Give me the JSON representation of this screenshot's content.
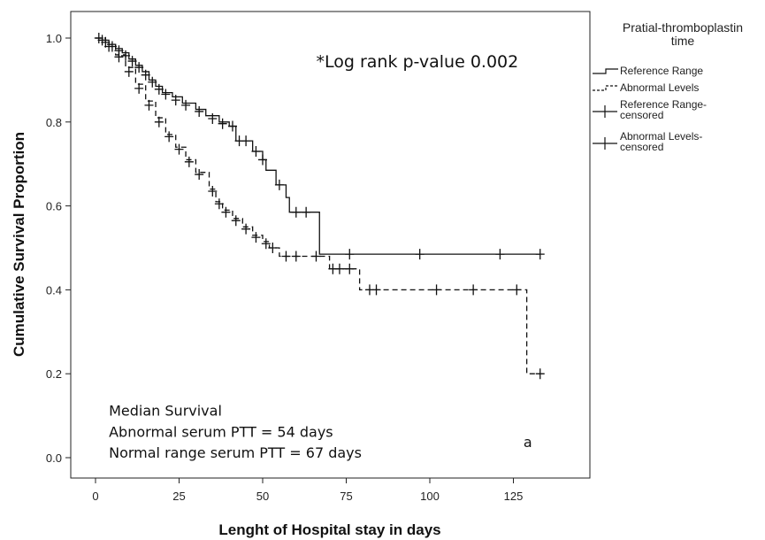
{
  "chart_data": {
    "type": "line",
    "subtype": "kaplan-meier",
    "xlabel": "Lenght of Hospital stay in days",
    "ylabel": "Cumulative Survival Proportion",
    "xlim": [
      -5,
      140
    ],
    "ylim": [
      -0.05,
      1.05
    ],
    "xticks": [
      0,
      25,
      50,
      75,
      100,
      125
    ],
    "yticks": [
      0.0,
      0.2,
      0.4,
      0.6,
      0.8,
      1.0
    ],
    "xtick_labels": [
      "0",
      "25",
      "50",
      "75",
      "100",
      "125"
    ],
    "ytick_labels": [
      "0.0",
      "0.2",
      "0.4",
      "0.6",
      "0.8",
      "1.0"
    ],
    "grid": false,
    "legend": {
      "title_lines": [
        "Pratial-thromboplastin",
        "time"
      ],
      "placement": "right-outside-top",
      "entries": [
        {
          "label": "Reference Range",
          "kind": "line",
          "series": "Reference Range"
        },
        {
          "label": "Abnormal Levels",
          "kind": "line",
          "series": "Abnormal Levels"
        },
        {
          "label_lines": [
            "Reference Range-",
            "censored"
          ],
          "kind": "censor"
        },
        {
          "label_lines": [
            "Abnormal Levels-",
            "censored"
          ],
          "kind": "censor"
        }
      ]
    },
    "series": [
      {
        "name": "Reference Range",
        "style": "solid",
        "steps": [
          [
            0,
            1.0
          ],
          [
            2,
            0.995
          ],
          [
            4,
            0.985
          ],
          [
            6,
            0.975
          ],
          [
            8,
            0.965
          ],
          [
            10,
            0.95
          ],
          [
            12,
            0.935
          ],
          [
            14,
            0.92
          ],
          [
            16,
            0.9
          ],
          [
            18,
            0.885
          ],
          [
            20,
            0.87
          ],
          [
            23,
            0.86
          ],
          [
            26,
            0.845
          ],
          [
            30,
            0.83
          ],
          [
            33,
            0.815
          ],
          [
            37,
            0.8
          ],
          [
            40,
            0.79
          ],
          [
            42,
            0.755
          ],
          [
            47,
            0.73
          ],
          [
            50,
            0.71
          ],
          [
            51,
            0.685
          ],
          [
            54,
            0.65
          ],
          [
            57,
            0.62
          ],
          [
            58,
            0.585
          ],
          [
            67,
            0.485
          ],
          [
            133,
            0.485
          ]
        ],
        "censored": [
          [
            1,
            1.0
          ],
          [
            3,
            0.99
          ],
          [
            5,
            0.98
          ],
          [
            7,
            0.97
          ],
          [
            9,
            0.958
          ],
          [
            11,
            0.945
          ],
          [
            13,
            0.93
          ],
          [
            15,
            0.912
          ],
          [
            17,
            0.895
          ],
          [
            19,
            0.878
          ],
          [
            21,
            0.866
          ],
          [
            24,
            0.852
          ],
          [
            27,
            0.84
          ],
          [
            31,
            0.825
          ],
          [
            35,
            0.808
          ],
          [
            38,
            0.796
          ],
          [
            41,
            0.79
          ],
          [
            43,
            0.755
          ],
          [
            45,
            0.755
          ],
          [
            48,
            0.73
          ],
          [
            50,
            0.71
          ],
          [
            55,
            0.65
          ],
          [
            60,
            0.585
          ],
          [
            63,
            0.585
          ],
          [
            76,
            0.485
          ],
          [
            97,
            0.485
          ],
          [
            121,
            0.485
          ],
          [
            133,
            0.485
          ]
        ]
      },
      {
        "name": "Abnormal Levels",
        "style": "dashed",
        "steps": [
          [
            0,
            1.0
          ],
          [
            3,
            0.985
          ],
          [
            6,
            0.96
          ],
          [
            9,
            0.93
          ],
          [
            12,
            0.89
          ],
          [
            15,
            0.85
          ],
          [
            18,
            0.81
          ],
          [
            21,
            0.77
          ],
          [
            24,
            0.74
          ],
          [
            27,
            0.71
          ],
          [
            30,
            0.68
          ],
          [
            34,
            0.64
          ],
          [
            36,
            0.61
          ],
          [
            38,
            0.59
          ],
          [
            41,
            0.57
          ],
          [
            44,
            0.55
          ],
          [
            47,
            0.53
          ],
          [
            50,
            0.515
          ],
          [
            52,
            0.5
          ],
          [
            55,
            0.48
          ],
          [
            68,
            0.48
          ],
          [
            70,
            0.45
          ],
          [
            78,
            0.45
          ],
          [
            79,
            0.4
          ],
          [
            128,
            0.4
          ],
          [
            129,
            0.2
          ],
          [
            133,
            0.2
          ]
        ],
        "censored": [
          [
            2,
            0.995
          ],
          [
            4,
            0.98
          ],
          [
            7,
            0.955
          ],
          [
            10,
            0.92
          ],
          [
            13,
            0.88
          ],
          [
            16,
            0.84
          ],
          [
            19,
            0.8
          ],
          [
            22,
            0.765
          ],
          [
            25,
            0.735
          ],
          [
            28,
            0.705
          ],
          [
            31,
            0.675
          ],
          [
            35,
            0.635
          ],
          [
            37,
            0.605
          ],
          [
            39,
            0.585
          ],
          [
            42,
            0.565
          ],
          [
            45,
            0.545
          ],
          [
            48,
            0.525
          ],
          [
            51,
            0.51
          ],
          [
            53,
            0.5
          ],
          [
            57,
            0.48
          ],
          [
            60,
            0.48
          ],
          [
            66,
            0.48
          ],
          [
            71,
            0.45
          ],
          [
            73,
            0.45
          ],
          [
            76,
            0.45
          ],
          [
            82,
            0.4
          ],
          [
            84,
            0.4
          ],
          [
            102,
            0.4
          ],
          [
            113,
            0.4
          ],
          [
            126,
            0.4
          ],
          [
            133,
            0.2
          ]
        ]
      }
    ],
    "annotations": [
      {
        "text": "*Log rank p-value 0.002",
        "style": "big",
        "x": 66,
        "y": 0.93
      },
      {
        "text": "Median Survival",
        "style": "normal",
        "x": 4,
        "y": 0.1
      },
      {
        "text": "Abnormal serum PTT = 54 days",
        "style": "normal",
        "x": 4,
        "y": 0.05
      },
      {
        "text": "Normal range serum PTT = 67 days",
        "style": "normal",
        "x": 4,
        "y": 0.0
      },
      {
        "text": "a",
        "style": "normal",
        "x": 128,
        "y": 0.025
      }
    ]
  }
}
